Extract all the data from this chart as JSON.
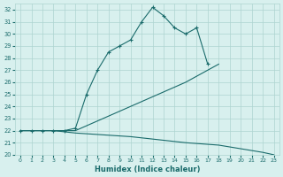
{
  "xlabel": "Humidex (Indice chaleur)",
  "xlim": [
    -0.5,
    23.5
  ],
  "ylim": [
    20,
    32.5
  ],
  "yticks": [
    20,
    21,
    22,
    23,
    24,
    25,
    26,
    27,
    28,
    29,
    30,
    31,
    32
  ],
  "xticks": [
    0,
    1,
    2,
    3,
    4,
    5,
    6,
    7,
    8,
    9,
    10,
    11,
    12,
    13,
    14,
    15,
    16,
    17,
    18,
    19,
    20,
    21,
    22,
    23
  ],
  "bg_color": "#d8f0ee",
  "grid_color": "#aed4d0",
  "line_color": "#1a6b6b",
  "line_width": 0.8,
  "marker": "+",
  "marker_size": 3,
  "series": [
    {
      "x": [
        0,
        1,
        2,
        3,
        4,
        5,
        6,
        7,
        8,
        9,
        10,
        11,
        12,
        13,
        14,
        15,
        16,
        17
      ],
      "y": [
        22,
        22,
        22,
        22,
        22,
        22.2,
        25,
        27,
        28.5,
        29,
        29.5,
        31,
        32.2,
        31.5,
        30.5,
        30,
        30.5,
        27.5
      ]
    },
    {
      "x": [
        0,
        3,
        5,
        10,
        15,
        18
      ],
      "y": [
        22,
        22,
        22,
        24,
        26,
        27.5
      ]
    },
    {
      "x": [
        0,
        3,
        5,
        10,
        15,
        18,
        20,
        22,
        23
      ],
      "y": [
        22,
        22,
        21.8,
        21.5,
        21,
        20.8,
        20.5,
        20.2,
        20
      ]
    }
  ]
}
